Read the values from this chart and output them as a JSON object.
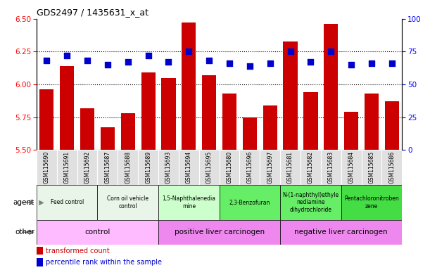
{
  "title": "GDS2497 / 1435631_x_at",
  "samples": [
    "GSM115690",
    "GSM115691",
    "GSM115692",
    "GSM115687",
    "GSM115688",
    "GSM115689",
    "GSM115693",
    "GSM115694",
    "GSM115695",
    "GSM115680",
    "GSM115696",
    "GSM115697",
    "GSM115681",
    "GSM115682",
    "GSM115683",
    "GSM115684",
    "GSM115685",
    "GSM115686"
  ],
  "transformed_count": [
    5.96,
    6.14,
    5.82,
    5.67,
    5.78,
    6.09,
    6.05,
    6.47,
    6.07,
    5.93,
    5.75,
    5.84,
    6.33,
    5.94,
    6.46,
    5.79,
    5.93,
    5.87
  ],
  "percentile_rank": [
    68,
    72,
    68,
    65,
    67,
    72,
    67,
    75,
    68,
    66,
    64,
    66,
    75,
    67,
    75,
    65,
    66,
    66
  ],
  "ylim_left": [
    5.5,
    6.5
  ],
  "ylim_right": [
    0,
    100
  ],
  "yticks_left": [
    5.5,
    5.75,
    6.0,
    6.25,
    6.5
  ],
  "yticks_right": [
    0,
    25,
    50,
    75,
    100
  ],
  "hlines": [
    5.75,
    6.0,
    6.25
  ],
  "bar_color": "#cc0000",
  "dot_color": "#0000cc",
  "agent_labels": [
    {
      "text": "Feed control",
      "start": 0,
      "end": 3,
      "color": "#e8f5e8"
    },
    {
      "text": "Corn oil vehicle\ncontrol",
      "start": 3,
      "end": 6,
      "color": "#e8f5e8"
    },
    {
      "text": "1,5-Naphthalenedia\nmine",
      "start": 6,
      "end": 9,
      "color": "#ccffcc"
    },
    {
      "text": "2,3-Benzofuran",
      "start": 9,
      "end": 12,
      "color": "#66ee66"
    },
    {
      "text": "N-(1-naphthyl)ethyle\nnediamine\ndihydrochloride",
      "start": 12,
      "end": 15,
      "color": "#66ee66"
    },
    {
      "text": "Pentachloronitroben\nzene",
      "start": 15,
      "end": 18,
      "color": "#44dd44"
    }
  ],
  "other_labels": [
    {
      "text": "control",
      "start": 0,
      "end": 6,
      "color": "#ffbbff"
    },
    {
      "text": "positive liver carcinogen",
      "start": 6,
      "end": 12,
      "color": "#ee88ee"
    },
    {
      "text": "negative liver carcinogen",
      "start": 12,
      "end": 18,
      "color": "#ee88ee"
    }
  ],
  "legend_items": [
    {
      "label": "transformed count",
      "color": "#cc0000"
    },
    {
      "label": "percentile rank within the sample",
      "color": "#0000cc"
    }
  ],
  "bar_width": 0.7,
  "dot_size": 40,
  "tick_label_color_gray": "#999999",
  "sample_bg_color": "#e0e0e0"
}
